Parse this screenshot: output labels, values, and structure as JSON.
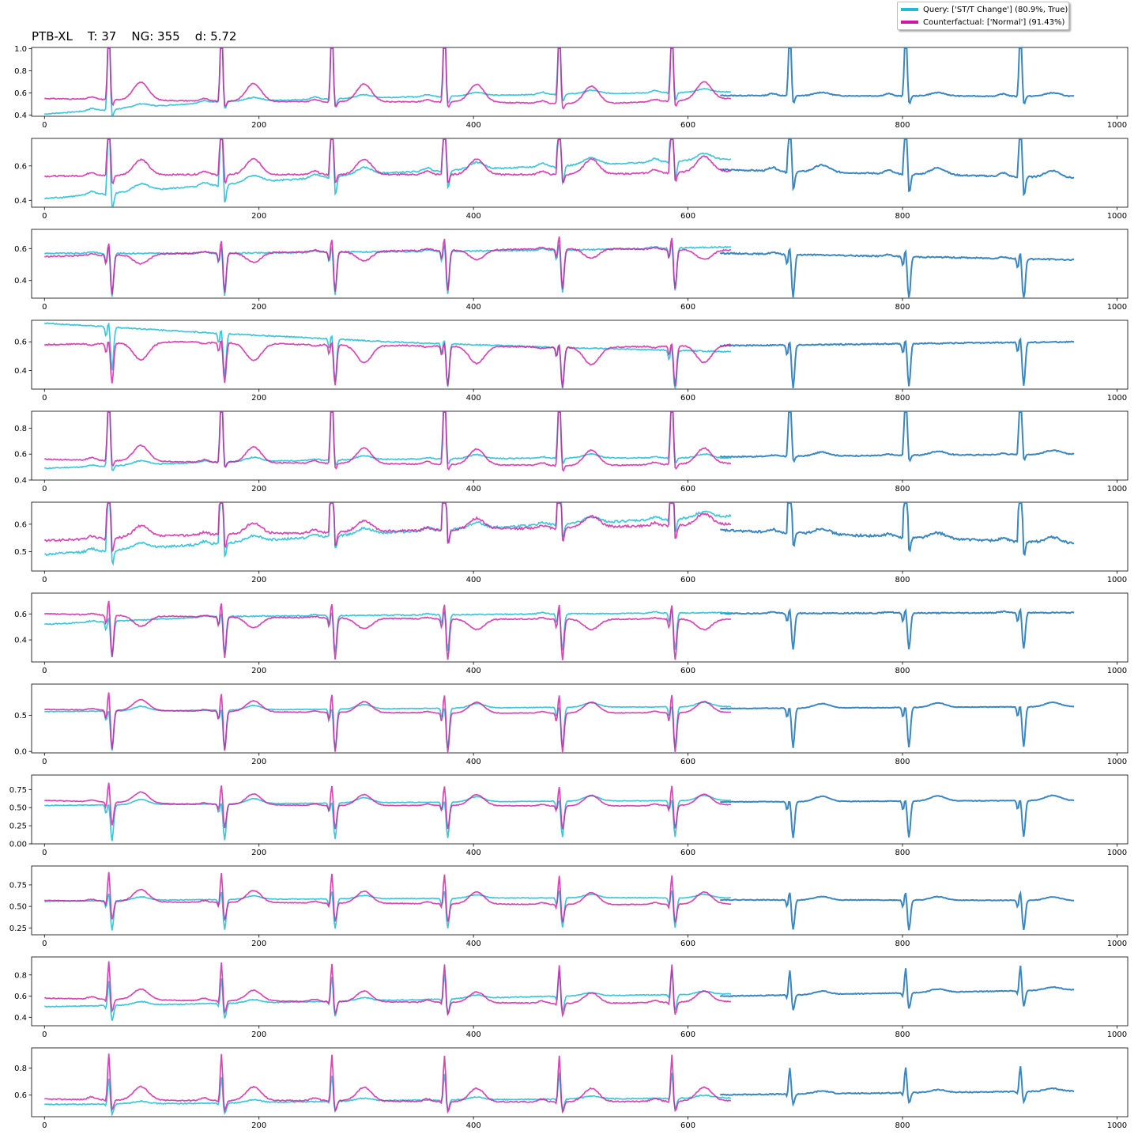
{
  "title": "PTB-XL    T: 37    NG: 355    d: 5.72",
  "legend": {
    "query_label": "Query: ['ST/T Change'] (80.9%, True)",
    "counterfactual_label": "Counterfactual: ['Normal'] (91.43%)"
  },
  "colors": {
    "query": "#1fbcd2",
    "counterfactual": "#cc1aa0",
    "shared": "#3a87c0"
  },
  "chart_data": [
    {
      "type": "line",
      "lead": 1,
      "xlim": [
        -12,
        1010
      ],
      "ylim": [
        0.39,
        1.01
      ],
      "yticks": [
        0.4,
        0.6,
        0.8,
        1.0
      ],
      "ytick_labels": [
        "0.4",
        "0.6",
        "0.8",
        "1.0"
      ],
      "xticks": [
        0,
        200,
        400,
        600,
        800,
        1000
      ],
      "beats": [
        60,
        165,
        268,
        373,
        480,
        585,
        695,
        803,
        910
      ],
      "q": {
        "base": [
          0.41,
          0.52,
          0.56,
          0.59,
          0.61,
          0.6,
          0.58
        ],
        "r": 0.97,
        "s": -0.08,
        "t": 0.03,
        "p": 0.02
      },
      "c": {
        "base": [
          0.55,
          0.53,
          0.52,
          0.52,
          0.5,
          0.55
        ],
        "r": 0.93,
        "s": -0.06,
        "t": 0.16,
        "p": 0.02
      },
      "blend": 0.58,
      "end": 0.57
    },
    {
      "type": "line",
      "lead": 2,
      "xlim": [
        -12,
        1010
      ],
      "ylim": [
        0.36,
        0.76
      ],
      "yticks": [
        0.4,
        0.6
      ],
      "ytick_labels": [
        "0.4",
        "0.6"
      ],
      "xticks": [
        0,
        200,
        400,
        600,
        800,
        1000
      ],
      "beats": [
        60,
        165,
        268,
        373,
        480,
        585,
        695,
        803,
        910
      ],
      "q": {
        "base": [
          0.41,
          0.49,
          0.56,
          0.6,
          0.64,
          0.62,
          0.6
        ],
        "r": 0.74,
        "s": -0.12,
        "t": 0.04,
        "p": 0.02
      },
      "c": {
        "base": [
          0.54,
          0.55,
          0.55,
          0.55,
          0.55,
          0.57
        ],
        "r": 0.74,
        "s": -0.06,
        "t": 0.09,
        "p": 0.02
      },
      "blend": 0.6,
      "end": 0.53
    },
    {
      "type": "line",
      "lead": 3,
      "xlim": [
        -12,
        1010
      ],
      "ylim": [
        0.29,
        0.72
      ],
      "yticks": [
        0.4,
        0.6
      ],
      "ytick_labels": [
        "0.4",
        "0.6"
      ],
      "xticks": [
        0,
        200,
        400,
        600,
        800,
        1000
      ],
      "beats": [
        60,
        165,
        268,
        373,
        480,
        585,
        695,
        803,
        910
      ],
      "q": {
        "base": [
          0.57,
          0.57,
          0.58,
          0.59,
          0.61,
          0.6,
          0.58
        ],
        "r": 0.06,
        "s": -0.27,
        "t": 0.0,
        "p": 0.01
      },
      "c": {
        "base": [
          0.55,
          0.57,
          0.58,
          0.59,
          0.6,
          0.59
        ],
        "r": 0.1,
        "s": -0.25,
        "t": -0.06,
        "p": 0.01
      },
      "blend": 0.59,
      "end": 0.53
    },
    {
      "type": "line",
      "lead": 4,
      "xlim": [
        -12,
        1010
      ],
      "ylim": [
        0.27,
        0.75
      ],
      "yticks": [
        0.4,
        0.6
      ],
      "ytick_labels": [
        "0.4",
        "0.6"
      ],
      "xticks": [
        0,
        200,
        400,
        600,
        800,
        1000
      ],
      "beats": [
        60,
        165,
        268,
        373,
        480,
        585,
        695,
        803,
        910
      ],
      "q": {
        "base": [
          0.73,
          0.66,
          0.6,
          0.56,
          0.53,
          0.56,
          0.56
        ],
        "r": 0.05,
        "s": -0.3,
        "t": 0.0,
        "p": 0.0
      },
      "c": {
        "base": [
          0.58,
          0.6,
          0.58,
          0.57,
          0.56,
          0.58
        ],
        "r": 0.04,
        "s": -0.28,
        "t": -0.12,
        "p": -0.01
      },
      "blend": 0.56,
      "end": 0.6
    },
    {
      "type": "line",
      "lead": 5,
      "xlim": [
        -12,
        1010
      ],
      "ylim": [
        0.4,
        0.93
      ],
      "yticks": [
        0.4,
        0.6,
        0.8
      ],
      "ytick_labels": [
        "0.4",
        "0.6",
        "0.8"
      ],
      "xticks": [
        0,
        200,
        400,
        600,
        800,
        1000
      ],
      "beats": [
        60,
        165,
        268,
        373,
        480,
        585,
        695,
        803,
        910
      ],
      "q": {
        "base": [
          0.49,
          0.54,
          0.56,
          0.57,
          0.57,
          0.57,
          0.56
        ],
        "r": 0.92,
        "s": -0.05,
        "t": 0.03,
        "p": 0.01
      },
      "c": {
        "base": [
          0.56,
          0.54,
          0.53,
          0.52,
          0.51,
          0.53
        ],
        "r": 0.86,
        "s": -0.05,
        "t": 0.12,
        "p": 0.02
      },
      "blend": 0.57,
      "end": 0.6
    },
    {
      "type": "line",
      "lead": 6,
      "xlim": [
        -12,
        1010
      ],
      "ylim": [
        0.43,
        0.68
      ],
      "yticks": [
        0.5,
        0.6
      ],
      "ytick_labels": [
        "0.5",
        "0.6"
      ],
      "xticks": [
        0,
        200,
        400,
        600,
        800,
        1000
      ],
      "beats": [
        60,
        165,
        268,
        373,
        480,
        585,
        695,
        803,
        910
      ],
      "q": {
        "base": [
          0.49,
          0.53,
          0.57,
          0.6,
          0.63,
          0.61,
          0.6
        ],
        "r": 0.64,
        "s": -0.06,
        "t": 0.02,
        "p": 0.01
      },
      "c": {
        "base": [
          0.54,
          0.56,
          0.57,
          0.58,
          0.59,
          0.6
        ],
        "r": 0.62,
        "s": -0.06,
        "t": 0.04,
        "p": 0.01
      },
      "blend": 0.6,
      "end": 0.53
    },
    {
      "type": "line",
      "lead": 7,
      "xlim": [
        -12,
        1010
      ],
      "ylim": [
        0.23,
        0.76
      ],
      "yticks": [
        0.4,
        0.6
      ],
      "ytick_labels": [
        "0.4",
        "0.6"
      ],
      "xticks": [
        0,
        200,
        400,
        600,
        800,
        1000
      ],
      "beats": [
        60,
        165,
        268,
        373,
        480,
        585,
        695,
        803,
        910
      ],
      "q": {
        "base": [
          0.52,
          0.58,
          0.59,
          0.6,
          0.61,
          0.61,
          0.6
        ],
        "r": 0.05,
        "s": -0.28,
        "t": 0.0,
        "p": 0.01
      },
      "c": {
        "base": [
          0.6,
          0.58,
          0.57,
          0.56,
          0.56,
          0.56
        ],
        "r": 0.14,
        "s": -0.32,
        "t": -0.08,
        "p": 0.01
      },
      "blend": 0.6,
      "end": 0.61
    },
    {
      "type": "line",
      "lead": 8,
      "xlim": [
        -12,
        1010
      ],
      "ylim": [
        -0.02,
        0.93
      ],
      "yticks": [
        0.0,
        0.5
      ],
      "ytick_labels": [
        "0.0",
        "0.5"
      ],
      "xticks": [
        0,
        200,
        400,
        600,
        800,
        1000
      ],
      "beats": [
        60,
        165,
        268,
        373,
        480,
        585,
        695,
        803,
        910
      ],
      "q": {
        "base": [
          0.55,
          0.57,
          0.59,
          0.61,
          0.62,
          0.6,
          0.59
        ],
        "r": 0.05,
        "s": -0.55,
        "t": 0.06,
        "p": 0.0
      },
      "c": {
        "base": [
          0.58,
          0.56,
          0.54,
          0.53,
          0.53,
          0.54
        ],
        "r": 0.3,
        "s": -0.55,
        "t": 0.15,
        "p": 0.02
      },
      "blend": 0.58,
      "end": 0.62
    },
    {
      "type": "line",
      "lead": 9,
      "xlim": [
        -12,
        1010
      ],
      "ylim": [
        0.0,
        0.95
      ],
      "yticks": [
        0.0,
        0.25,
        0.5,
        0.75
      ],
      "ytick_labels": [
        "0.00",
        "0.25",
        "0.50",
        "0.75"
      ],
      "xticks": [
        0,
        200,
        400,
        600,
        800,
        1000
      ],
      "beats": [
        60,
        165,
        268,
        373,
        480,
        585,
        695,
        803,
        910
      ],
      "q": {
        "base": [
          0.53,
          0.55,
          0.57,
          0.59,
          0.6,
          0.59,
          0.57
        ],
        "r": 0.05,
        "s": -0.5,
        "t": 0.07,
        "p": 0.0
      },
      "c": {
        "base": [
          0.6,
          0.55,
          0.53,
          0.53,
          0.52,
          0.54
        ],
        "r": 0.3,
        "s": -0.33,
        "t": 0.15,
        "p": 0.02
      },
      "blend": 0.57,
      "end": 0.6
    },
    {
      "type": "line",
      "lead": 10,
      "xlim": [
        -12,
        1010
      ],
      "ylim": [
        0.17,
        0.97
      ],
      "yticks": [
        0.25,
        0.5,
        0.75
      ],
      "ytick_labels": [
        "0.25",
        "0.50",
        "0.75"
      ],
      "xticks": [
        0,
        200,
        400,
        600,
        800,
        1000
      ],
      "beats": [
        60,
        165,
        268,
        373,
        480,
        585,
        695,
        803,
        910
      ],
      "q": {
        "base": [
          0.56,
          0.58,
          0.59,
          0.6,
          0.6,
          0.59,
          0.58
        ],
        "r": 0.12,
        "s": -0.35,
        "t": 0.04,
        "p": 0.0
      },
      "c": {
        "base": [
          0.57,
          0.55,
          0.54,
          0.53,
          0.52,
          0.53
        ],
        "r": 0.36,
        "s": -0.22,
        "t": 0.14,
        "p": 0.02
      },
      "blend": 0.58,
      "end": 0.57
    },
    {
      "type": "line",
      "lead": 11,
      "xlim": [
        -12,
        1010
      ],
      "ylim": [
        0.32,
        0.97
      ],
      "yticks": [
        0.4,
        0.6,
        0.8
      ],
      "ytick_labels": [
        "0.4",
        "0.6",
        "0.8"
      ],
      "xticks": [
        0,
        200,
        400,
        600,
        800,
        1000
      ],
      "beats": [
        60,
        165,
        268,
        373,
        480,
        585,
        695,
        803,
        910
      ],
      "q": {
        "base": [
          0.5,
          0.53,
          0.56,
          0.6,
          0.62,
          0.6,
          0.59
        ],
        "r": 0.25,
        "s": -0.15,
        "t": 0.03,
        "p": 0.0
      },
      "c": {
        "base": [
          0.58,
          0.56,
          0.55,
          0.54,
          0.53,
          0.55
        ],
        "r": 0.37,
        "s": -0.12,
        "t": 0.1,
        "p": 0.02
      },
      "blend": 0.57,
      "end": 0.66
    },
    {
      "type": "line",
      "lead": 12,
      "xlim": [
        -12,
        1010
      ],
      "ylim": [
        0.44,
        0.95
      ],
      "yticks": [
        0.6,
        0.8
      ],
      "ytick_labels": [
        "0.6",
        "0.8"
      ],
      "xticks": [
        0,
        200,
        400,
        600,
        800,
        1000
      ],
      "beats": [
        60,
        165,
        268,
        373,
        480,
        585,
        695,
        803,
        910
      ],
      "q": {
        "base": [
          0.53,
          0.54,
          0.56,
          0.57,
          0.58,
          0.59,
          0.59
        ],
        "r": 0.2,
        "s": -0.08,
        "t": 0.02,
        "p": 0.0
      },
      "c": {
        "base": [
          0.57,
          0.56,
          0.56,
          0.55,
          0.55,
          0.56
        ],
        "r": 0.35,
        "s": -0.08,
        "t": 0.1,
        "p": 0.02
      },
      "blend": 0.59,
      "end": 0.63
    }
  ]
}
